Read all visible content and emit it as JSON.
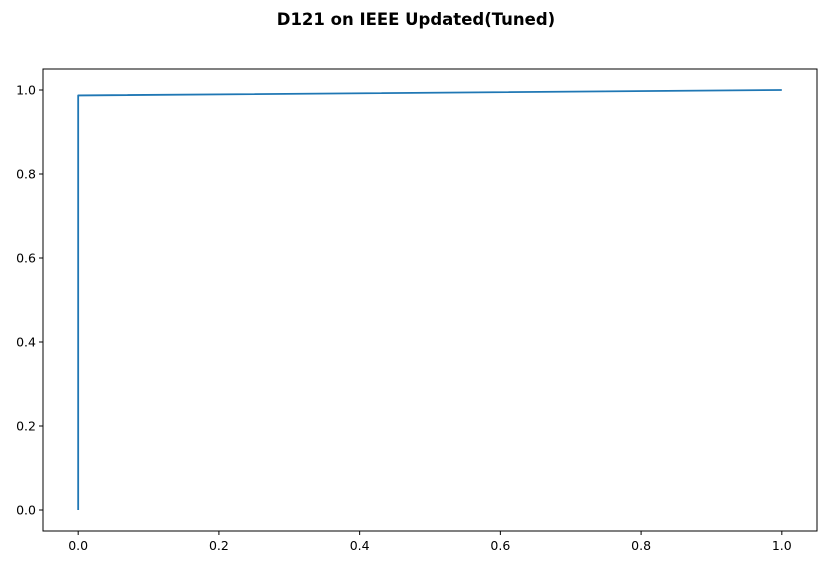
{
  "chart_data": {
    "type": "line",
    "title": "D121 on IEEE Updated(Tuned)",
    "xlabel": "",
    "ylabel": "",
    "xlim": [
      -0.05,
      1.05
    ],
    "ylim": [
      -0.05,
      1.05
    ],
    "xticks": [
      0.0,
      0.2,
      0.4,
      0.6,
      0.8,
      1.0
    ],
    "xtick_labels": [
      "0.0",
      "0.2",
      "0.4",
      "0.6",
      "0.8",
      "1.0"
    ],
    "yticks": [
      0.0,
      0.2,
      0.4,
      0.6,
      0.8,
      1.0
    ],
    "ytick_labels": [
      "0.0",
      "0.2",
      "0.4",
      "0.6",
      "0.8",
      "1.0"
    ],
    "grid": false,
    "legend": false,
    "series": [
      {
        "color": "#1f77b4",
        "x": [
          0.0,
          0.0,
          1.0
        ],
        "y": [
          0.0,
          0.987,
          1.0
        ]
      }
    ]
  }
}
